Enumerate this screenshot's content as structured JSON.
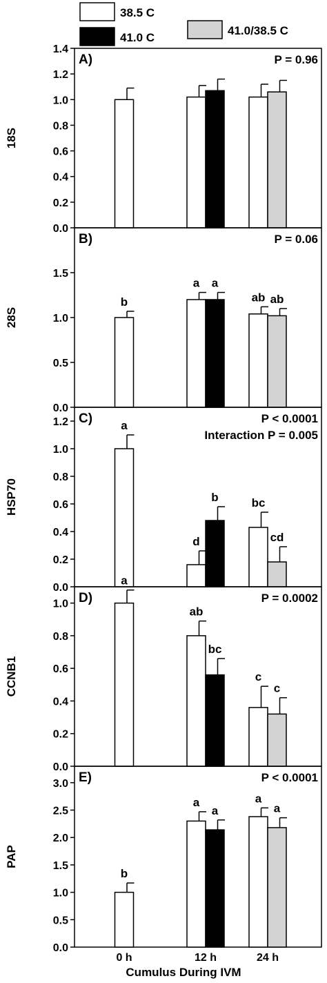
{
  "legend": [
    {
      "label": "38.5 C",
      "color": "#ffffff"
    },
    {
      "label": "41.0 C",
      "color": "#000000"
    },
    {
      "label": "41.0/38.5 C",
      "color": "#d3d3d3"
    }
  ],
  "x_categories": [
    "0 h",
    "12 h",
    "24 h"
  ],
  "xlabel": "Cumulus During IVM",
  "chart_data": [
    {
      "type": "bar",
      "panel": "A)",
      "ylabel": "18S",
      "annotation": [
        "P = 0.96"
      ],
      "ylim": [
        0,
        1.4
      ],
      "yticks": [
        0.0,
        0.2,
        0.4,
        0.6,
        0.8,
        1.0,
        1.2,
        1.4
      ],
      "tick_decimals": 1,
      "categories": [
        "0 h",
        "12 h",
        "24 h"
      ],
      "series": [
        {
          "name": "38.5 C",
          "values": [
            1.0,
            1.02,
            1.02
          ],
          "errors": [
            0.09,
            0.09,
            0.1
          ],
          "letters": [
            "",
            "",
            ""
          ]
        },
        {
          "name": "41.0 C",
          "values": [
            null,
            1.07,
            null
          ],
          "errors": [
            null,
            0.09,
            null
          ],
          "letters": [
            "",
            "",
            ""
          ]
        },
        {
          "name": "41.0/38.5 C",
          "values": [
            null,
            null,
            1.06
          ],
          "errors": [
            null,
            null,
            0.09
          ],
          "letters": [
            "",
            "",
            ""
          ]
        }
      ]
    },
    {
      "type": "bar",
      "panel": "B)",
      "ylabel": "28S",
      "annotation": [
        "P = 0.06"
      ],
      "ylim": [
        0,
        2.0
      ],
      "yticks": [
        0.0,
        0.5,
        1.0,
        1.5
      ],
      "tick_decimals": 1,
      "categories": [
        "0 h",
        "12 h",
        "24 h"
      ],
      "series": [
        {
          "name": "38.5 C",
          "values": [
            1.0,
            1.2,
            1.04
          ],
          "errors": [
            0.07,
            0.08,
            0.08
          ],
          "letters": [
            "b",
            "a",
            "ab"
          ]
        },
        {
          "name": "41.0 C",
          "values": [
            null,
            1.2,
            null
          ],
          "errors": [
            null,
            0.08,
            null
          ],
          "letters": [
            "",
            "a",
            ""
          ]
        },
        {
          "name": "41.0/38.5 C",
          "values": [
            null,
            null,
            1.02
          ],
          "errors": [
            null,
            null,
            0.08
          ],
          "letters": [
            "",
            "",
            "ab"
          ]
        }
      ]
    },
    {
      "type": "bar",
      "panel": "C)",
      "ylabel": "HSP70",
      "annotation": [
        "P < 0.0001",
        "Interaction P = 0.005"
      ],
      "ylim": [
        0,
        1.3
      ],
      "yticks": [
        0.0,
        0.2,
        0.4,
        0.6,
        0.8,
        1.0,
        1.2
      ],
      "tick_decimals": 1,
      "categories": [
        "0 h",
        "12 h",
        "24 h"
      ],
      "series": [
        {
          "name": "38.5 C",
          "values": [
            1.0,
            0.16,
            0.43
          ],
          "errors": [
            0.1,
            0.1,
            0.11
          ],
          "letters": [
            "a",
            "d",
            "bc"
          ]
        },
        {
          "name": "41.0 C",
          "values": [
            null,
            0.48,
            null
          ],
          "errors": [
            null,
            0.1,
            null
          ],
          "letters": [
            "",
            "b",
            ""
          ]
        },
        {
          "name": "41.0/38.5 C",
          "values": [
            null,
            null,
            0.18
          ],
          "errors": [
            null,
            null,
            0.11
          ],
          "letters": [
            "",
            "",
            "cd"
          ]
        }
      ]
    },
    {
      "type": "bar",
      "panel": "D)",
      "ylabel": "CCNB1",
      "annotation": [
        "P = 0.0002"
      ],
      "ylim": [
        0,
        1.1
      ],
      "yticks": [
        0.0,
        0.2,
        0.4,
        0.6,
        0.8,
        1.0
      ],
      "tick_decimals": 1,
      "categories": [
        "0 h",
        "12 h",
        "24 h"
      ],
      "series": [
        {
          "name": "38.5 C",
          "values": [
            1.0,
            0.8,
            0.36
          ],
          "errors": [
            0.08,
            0.09,
            0.13
          ],
          "letters": [
            "a",
            "ab",
            "c"
          ]
        },
        {
          "name": "41.0 C",
          "values": [
            null,
            0.56,
            null
          ],
          "errors": [
            null,
            0.1,
            null
          ],
          "letters": [
            "",
            "bc",
            ""
          ]
        },
        {
          "name": "41.0/38.5 C",
          "values": [
            null,
            null,
            0.32
          ],
          "errors": [
            null,
            null,
            0.1
          ],
          "letters": [
            "",
            "",
            "c"
          ]
        }
      ]
    },
    {
      "type": "bar",
      "panel": "E)",
      "ylabel": "PAP",
      "annotation": [
        "P < 0.0001"
      ],
      "ylim": [
        0,
        3.3
      ],
      "yticks": [
        0.0,
        0.5,
        1.0,
        1.5,
        2.0,
        2.5,
        3.0
      ],
      "tick_decimals": 1,
      "categories": [
        "0 h",
        "12 h",
        "24 h"
      ],
      "series": [
        {
          "name": "38.5 C",
          "values": [
            1.0,
            2.3,
            2.38
          ],
          "errors": [
            0.17,
            0.17,
            0.16
          ],
          "letters": [
            "b",
            "a",
            "a"
          ]
        },
        {
          "name": "41.0 C",
          "values": [
            null,
            2.14,
            null
          ],
          "errors": [
            null,
            0.18,
            null
          ],
          "letters": [
            "",
            "a",
            ""
          ]
        },
        {
          "name": "41.0/38.5 C",
          "values": [
            null,
            null,
            2.18
          ],
          "errors": [
            null,
            null,
            0.18
          ],
          "letters": [
            "",
            "",
            "a"
          ]
        }
      ]
    }
  ]
}
